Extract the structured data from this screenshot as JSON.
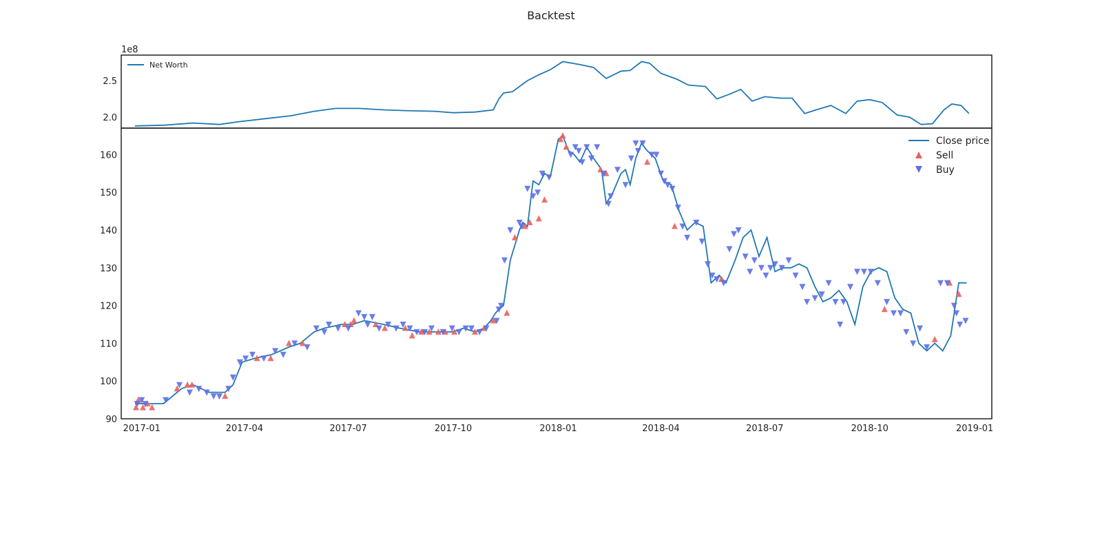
{
  "figure": {
    "title": "Backtest"
  },
  "chart_data": [
    {
      "type": "line",
      "panel": "net-worth",
      "offset_label": "1e8",
      "ylim": [
        1.85,
        2.85
      ],
      "yticks": [
        2.0,
        2.5
      ],
      "grid": false,
      "legend_position": "top-left",
      "color": "#1f77b4",
      "series": [
        {
          "name": "Net Worth",
          "x": [
            "2016-12-26",
            "2017-01-20",
            "2017-02-15",
            "2017-03-10",
            "2017-03-28",
            "2017-04-20",
            "2017-05-12",
            "2017-06-01",
            "2017-06-20",
            "2017-07-10",
            "2017-08-01",
            "2017-08-20",
            "2017-09-15",
            "2017-10-01",
            "2017-10-20",
            "2017-11-05",
            "2017-11-10",
            "2017-11-14",
            "2017-11-22",
            "2017-12-05",
            "2017-12-15",
            "2017-12-25",
            "2018-01-05",
            "2018-01-20",
            "2018-02-01",
            "2018-02-12",
            "2018-02-25",
            "2018-03-05",
            "2018-03-15",
            "2018-03-22",
            "2018-04-01",
            "2018-04-15",
            "2018-04-25",
            "2018-05-10",
            "2018-05-20",
            "2018-06-01",
            "2018-06-10",
            "2018-06-20",
            "2018-07-01",
            "2018-07-15",
            "2018-07-25",
            "2018-08-05",
            "2018-08-15",
            "2018-08-28",
            "2018-09-10",
            "2018-09-20",
            "2018-10-01",
            "2018-10-12",
            "2018-10-25",
            "2018-11-05",
            "2018-11-15",
            "2018-11-25",
            "2018-12-05",
            "2018-12-12",
            "2018-12-20",
            "2018-12-27"
          ],
          "values": [
            1.88,
            1.89,
            1.92,
            1.9,
            1.94,
            1.98,
            2.02,
            2.08,
            2.12,
            2.12,
            2.1,
            2.09,
            2.08,
            2.06,
            2.07,
            2.1,
            2.25,
            2.33,
            2.35,
            2.5,
            2.58,
            2.65,
            2.76,
            2.72,
            2.68,
            2.53,
            2.63,
            2.64,
            2.76,
            2.74,
            2.6,
            2.52,
            2.44,
            2.42,
            2.25,
            2.32,
            2.38,
            2.22,
            2.28,
            2.26,
            2.26,
            2.05,
            2.1,
            2.16,
            2.05,
            2.22,
            2.24,
            2.2,
            2.03,
            2.0,
            1.9,
            1.91,
            2.1,
            2.18,
            2.16,
            2.05
          ]
        }
      ]
    },
    {
      "type": "line",
      "panel": "price",
      "ylim": [
        90,
        167
      ],
      "yticks": [
        90,
        100,
        110,
        120,
        130,
        140,
        150,
        160
      ],
      "xticks": [
        "2017-01",
        "2017-04",
        "2017-07",
        "2017-10",
        "2018-01",
        "2018-04",
        "2018-07",
        "2018-10",
        "2019-01"
      ],
      "grid": false,
      "legend_position": "top-right",
      "series": [
        {
          "name": "Close price",
          "color": "#1f77b4",
          "x": [
            "2016-12-26",
            "2017-01-05",
            "2017-01-20",
            "2017-02-05",
            "2017-02-15",
            "2017-03-01",
            "2017-03-10",
            "2017-03-15",
            "2017-03-22",
            "2017-03-30",
            "2017-04-10",
            "2017-04-25",
            "2017-05-10",
            "2017-05-20",
            "2017-06-01",
            "2017-06-10",
            "2017-06-25",
            "2017-07-05",
            "2017-07-15",
            "2017-08-01",
            "2017-08-15",
            "2017-09-01",
            "2017-09-15",
            "2017-10-01",
            "2017-10-10",
            "2017-10-20",
            "2017-10-28",
            "2017-11-03",
            "2017-11-07",
            "2017-11-10",
            "2017-11-14",
            "2017-11-20",
            "2017-11-28",
            "2017-12-01",
            "2017-12-05",
            "2017-12-10",
            "2017-12-15",
            "2017-12-20",
            "2017-12-25",
            "2018-01-01",
            "2018-01-05",
            "2018-01-10",
            "2018-01-15",
            "2018-01-20",
            "2018-01-26",
            "2018-02-01",
            "2018-02-08",
            "2018-02-12",
            "2018-02-18",
            "2018-02-25",
            "2018-03-01",
            "2018-03-05",
            "2018-03-10",
            "2018-03-15",
            "2018-03-20",
            "2018-03-27",
            "2018-04-03",
            "2018-04-10",
            "2018-04-17",
            "2018-04-24",
            "2018-05-01",
            "2018-05-08",
            "2018-05-15",
            "2018-05-22",
            "2018-05-28",
            "2018-06-05",
            "2018-06-12",
            "2018-06-19",
            "2018-06-26",
            "2018-07-03",
            "2018-07-10",
            "2018-07-17",
            "2018-07-24",
            "2018-07-31",
            "2018-08-07",
            "2018-08-14",
            "2018-08-21",
            "2018-08-28",
            "2018-09-04",
            "2018-09-11",
            "2018-09-18",
            "2018-09-25",
            "2018-10-02",
            "2018-10-09",
            "2018-10-16",
            "2018-10-23",
            "2018-10-30",
            "2018-11-06",
            "2018-11-13",
            "2018-11-20",
            "2018-11-27",
            "2018-12-04",
            "2018-12-11",
            "2018-12-18",
            "2018-12-25"
          ],
          "values": [
            94,
            94,
            94,
            98,
            99,
            97,
            97,
            97,
            99,
            105,
            106,
            107,
            109,
            110,
            113,
            114,
            115,
            115,
            116,
            115,
            114,
            113,
            113,
            113,
            114,
            113,
            114,
            116,
            118,
            119,
            120,
            132,
            140,
            142,
            141,
            153,
            152,
            155,
            154,
            164,
            165,
            161,
            160,
            158,
            162,
            159,
            156,
            147,
            150,
            155,
            156,
            152,
            159,
            163,
            161,
            159,
            153,
            152,
            145,
            140,
            142,
            141,
            126,
            128,
            126,
            132,
            138,
            140,
            133,
            138,
            129,
            130,
            130,
            131,
            130,
            125,
            121,
            122,
            124,
            121,
            115,
            125,
            129,
            130,
            129,
            122,
            119,
            118,
            110,
            108,
            110,
            108,
            112,
            126,
            126
          ]
        },
        {
          "name": "Sell",
          "color": "#e8625f",
          "marker": "triangle-up",
          "x": [
            "2016-12-27",
            "2016-12-29",
            "2017-01-02",
            "2017-01-06",
            "2017-01-10",
            "2017-02-01",
            "2017-02-10",
            "2017-02-14",
            "2017-03-15",
            "2017-04-12",
            "2017-04-24",
            "2017-05-10",
            "2017-05-22",
            "2017-06-28",
            "2017-07-03",
            "2017-07-06",
            "2017-07-25",
            "2017-08-02",
            "2017-08-20",
            "2017-08-26",
            "2017-09-03",
            "2017-09-10",
            "2017-09-18",
            "2017-09-24",
            "2017-10-02",
            "2017-10-20",
            "2017-10-28",
            "2017-11-05",
            "2017-11-17",
            "2017-11-24",
            "2017-12-03",
            "2017-12-07",
            "2017-12-15",
            "2017-12-20",
            "2018-01-03",
            "2018-01-05",
            "2018-01-08",
            "2018-02-07",
            "2018-02-12",
            "2018-03-20",
            "2018-04-13",
            "2018-05-24",
            "2018-10-14",
            "2018-11-27",
            "2018-12-10",
            "2018-12-18"
          ],
          "values": [
            93,
            95,
            93,
            94,
            93,
            98,
            99,
            99,
            96,
            106,
            106,
            110,
            110,
            115,
            115,
            116,
            115,
            114,
            114,
            112,
            113,
            113,
            113,
            113,
            113,
            113,
            114,
            116,
            118,
            138,
            141,
            142,
            143,
            148,
            164,
            165,
            162,
            156,
            155,
            158,
            141,
            127,
            119,
            111,
            126,
            123
          ]
        },
        {
          "name": "Buy",
          "color": "#5b6fe6",
          "marker": "triangle-down",
          "x": [
            "2016-12-28",
            "2017-01-01",
            "2017-01-04",
            "2017-01-22",
            "2017-02-03",
            "2017-02-12",
            "2017-02-20",
            "2017-02-27",
            "2017-03-05",
            "2017-03-10",
            "2017-03-18",
            "2017-03-22",
            "2017-03-28",
            "2017-04-02",
            "2017-04-08",
            "2017-04-18",
            "2017-04-28",
            "2017-05-05",
            "2017-05-15",
            "2017-05-26",
            "2017-06-03",
            "2017-06-10",
            "2017-06-14",
            "2017-06-22",
            "2017-07-01",
            "2017-07-10",
            "2017-07-15",
            "2017-07-18",
            "2017-07-22",
            "2017-07-28",
            "2017-08-05",
            "2017-08-12",
            "2017-08-18",
            "2017-08-24",
            "2017-08-30",
            "2017-09-06",
            "2017-09-12",
            "2017-09-22",
            "2017-09-30",
            "2017-10-06",
            "2017-10-12",
            "2017-10-17",
            "2017-10-24",
            "2017-10-30",
            "2017-11-08",
            "2017-11-10",
            "2017-11-12",
            "2017-11-15",
            "2017-11-20",
            "2017-11-28",
            "2017-11-30",
            "2017-12-05",
            "2017-12-10",
            "2017-12-14",
            "2017-12-18",
            "2017-12-24",
            "2018-01-12",
            "2018-01-16",
            "2018-01-19",
            "2018-01-22",
            "2018-01-26",
            "2018-01-30",
            "2018-02-04",
            "2018-02-10",
            "2018-02-14",
            "2018-02-16",
            "2018-02-22",
            "2018-03-01",
            "2018-03-06",
            "2018-03-10",
            "2018-03-12",
            "2018-03-16",
            "2018-03-24",
            "2018-03-28",
            "2018-04-01",
            "2018-04-04",
            "2018-04-07",
            "2018-04-11",
            "2018-04-16",
            "2018-04-20",
            "2018-04-24",
            "2018-05-02",
            "2018-05-07",
            "2018-05-12",
            "2018-05-16",
            "2018-05-20",
            "2018-05-26",
            "2018-05-31",
            "2018-06-04",
            "2018-06-08",
            "2018-06-14",
            "2018-06-18",
            "2018-06-22",
            "2018-06-28",
            "2018-07-02",
            "2018-07-06",
            "2018-07-10",
            "2018-07-16",
            "2018-07-22",
            "2018-07-28",
            "2018-08-03",
            "2018-08-07",
            "2018-08-14",
            "2018-08-20",
            "2018-08-26",
            "2018-09-01",
            "2018-09-05",
            "2018-09-08",
            "2018-09-14",
            "2018-09-20",
            "2018-09-26",
            "2018-10-02",
            "2018-10-08",
            "2018-10-16",
            "2018-10-22",
            "2018-10-28",
            "2018-11-02",
            "2018-11-08",
            "2018-11-14",
            "2018-11-20",
            "2018-12-02",
            "2018-12-08",
            "2018-12-14",
            "2018-12-16",
            "2018-12-19",
            "2018-12-24"
          ],
          "values": [
            94,
            95,
            94,
            95,
            99,
            97,
            98,
            97,
            96,
            96,
            98,
            101,
            105,
            106,
            107,
            106,
            108,
            107,
            110,
            109,
            114,
            113,
            115,
            114,
            114,
            118,
            117,
            115,
            117,
            114,
            115,
            114,
            115,
            114,
            113,
            113,
            114,
            113,
            114,
            113,
            114,
            114,
            113,
            114,
            116,
            119,
            120,
            132,
            140,
            142,
            141,
            151,
            149,
            150,
            155,
            154,
            160,
            162,
            161,
            158,
            162,
            159,
            162,
            155,
            147,
            149,
            156,
            152,
            159,
            163,
            161,
            163,
            160,
            160,
            155,
            153,
            152,
            151,
            146,
            141,
            138,
            142,
            137,
            131,
            128,
            127,
            126,
            135,
            139,
            140,
            133,
            129,
            132,
            130,
            128,
            130,
            131,
            130,
            132,
            128,
            125,
            121,
            122,
            123,
            126,
            121,
            115,
            121,
            125,
            129,
            129,
            129,
            126,
            121,
            118,
            118,
            113,
            110,
            114,
            109,
            126,
            126,
            120,
            118,
            115,
            116
          ]
        }
      ]
    }
  ]
}
